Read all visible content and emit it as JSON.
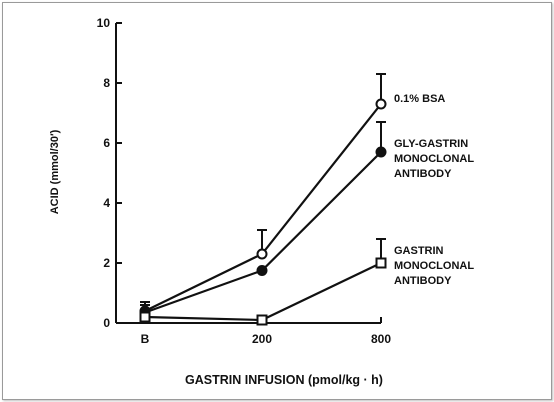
{
  "chart_data": {
    "type": "line",
    "xlabel": "GASTRIN INFUSION (pmol/kg · h)",
    "ylabel": "ACID (mmol/30′)",
    "categories": [
      "B",
      "200",
      "800"
    ],
    "ylim": [
      0,
      10
    ],
    "yticks": [
      "0",
      "2",
      "4",
      "6",
      "8",
      "10"
    ],
    "series": [
      {
        "name": "0.1% BSA",
        "label_lines": [
          "0.1% BSA"
        ],
        "marker": "open-circle",
        "values": [
          0.4,
          2.3,
          7.3
        ],
        "error": [
          0.3,
          0.8,
          1.0
        ]
      },
      {
        "name": "GLY-GASTRIN MONOCLONAL ANTIBODY",
        "label_lines": [
          "GLY-GASTRIN",
          "MONOCLONAL",
          "ANTIBODY"
        ],
        "marker": "filled-circle",
        "values": [
          0.35,
          1.75,
          5.7
        ],
        "error": [
          0.25,
          0.0,
          1.0
        ]
      },
      {
        "name": "GASTRIN MONOCLONAL ANTIBODY",
        "label_lines": [
          "GASTRIN",
          "MONOCLONAL",
          "ANTIBODY"
        ],
        "marker": "open-square",
        "values": [
          0.2,
          0.1,
          2.0
        ],
        "error": [
          0.2,
          0.0,
          0.8
        ]
      }
    ],
    "grid": false,
    "legend": "inline-right"
  }
}
